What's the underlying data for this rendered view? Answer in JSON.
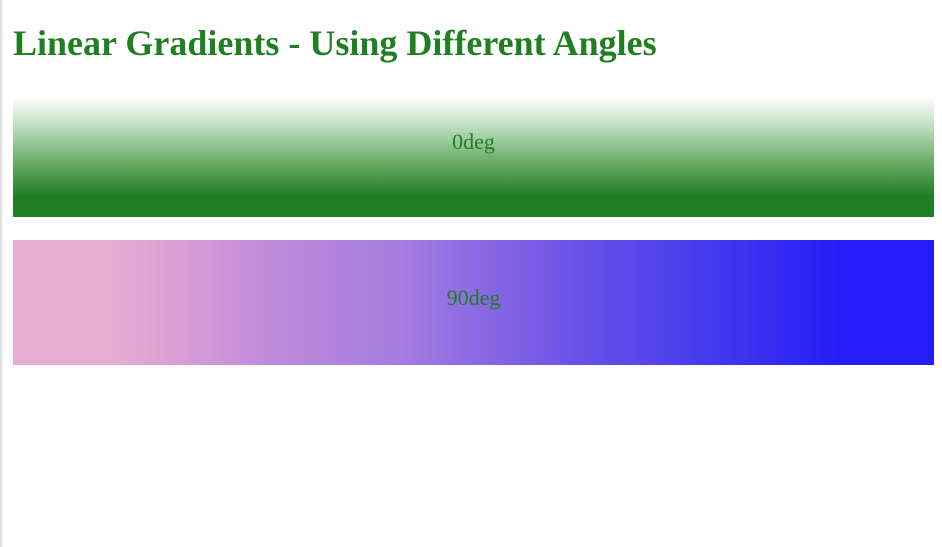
{
  "page": {
    "title": "Linear Gradients - Using Different Angles"
  },
  "boxes": [
    {
      "label": "0deg"
    },
    {
      "label": "90deg"
    }
  ],
  "colors": {
    "title_text": "#217f23",
    "label_text": "#217f23",
    "gradient_0deg": [
      "#217f23",
      "#6fb06d",
      "#c5e2c5",
      "#ffffff"
    ],
    "gradient_90deg": [
      "#e7acd2",
      "#c08ada",
      "#a57ce0",
      "#6d54e6",
      "#4339ee",
      "#261cf8"
    ]
  }
}
